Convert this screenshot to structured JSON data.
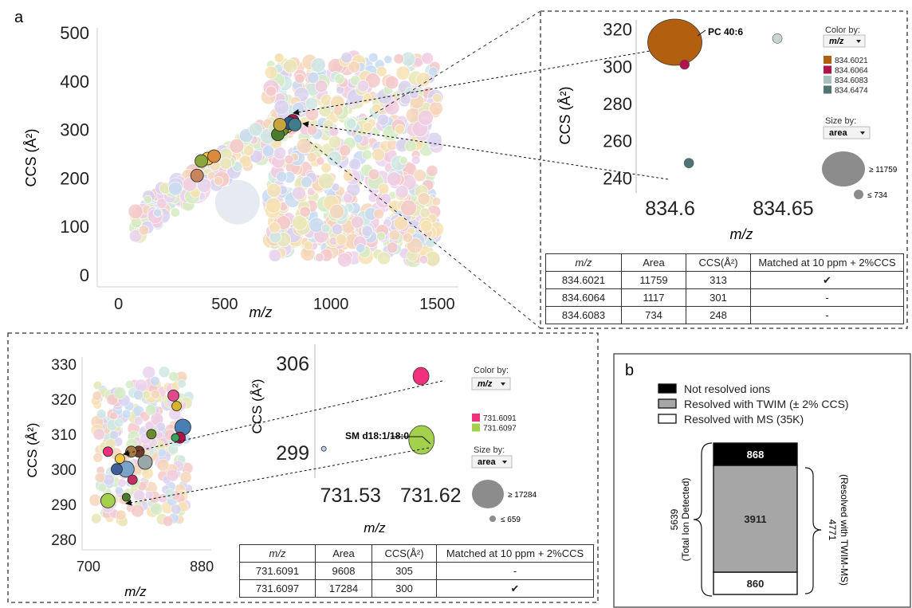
{
  "panel_labels": {
    "a": "a",
    "b": "b"
  },
  "colors": {
    "accent_orange": "#b35f10",
    "accent_red": "#b0144a",
    "accent_gray_light": "#a8c0bd",
    "accent_teal": "#4f7476",
    "accent_magenta": "#f0307c",
    "accent_green": "#a3d04d",
    "bar_black": "#000000",
    "bar_gray": "#a6a6a6",
    "bar_white": "#ffffff"
  },
  "chart_data": [
    {
      "id": "main_scatter",
      "type": "scatter",
      "title": "",
      "xlabel": "m/z",
      "ylabel": "CCS (Å²)",
      "xlim": [
        -100,
        1600
      ],
      "ylim": [
        -25,
        510
      ],
      "xticks": [
        0,
        500,
        1000,
        1500
      ],
      "yticks": [
        0,
        100,
        200,
        300,
        400,
        500
      ],
      "grid": false,
      "highlight_points": [
        {
          "x": 820,
          "y": 318,
          "color": "#b0144a"
        },
        {
          "x": 790,
          "y": 306,
          "color": "#e8a43a"
        },
        {
          "x": 770,
          "y": 300,
          "color": "#6e8a2e"
        },
        {
          "x": 750,
          "y": 290,
          "color": "#4c7a2e"
        },
        {
          "x": 805,
          "y": 313,
          "color": "#2e5a8a"
        },
        {
          "x": 830,
          "y": 310,
          "color": "#3f7d8a"
        },
        {
          "x": 760,
          "y": 310,
          "color": "#c7a43c"
        },
        {
          "x": 420,
          "y": 240,
          "color": "#f2c744"
        },
        {
          "x": 450,
          "y": 245,
          "color": "#d98a3a"
        },
        {
          "x": 390,
          "y": 235,
          "color": "#8aa63c"
        },
        {
          "x": 370,
          "y": 205,
          "color": "#c6855d"
        }
      ]
    },
    {
      "id": "zoom_a",
      "type": "scatter",
      "title": "",
      "xlabel": "m/z",
      "ylabel": "CCS (Å²)",
      "xlim": [
        834.585,
        834.665
      ],
      "ylim": [
        232,
        325
      ],
      "xticks": [
        834.6,
        834.65
      ],
      "yticks": [
        240,
        260,
        280,
        300,
        320
      ],
      "grid": false,
      "points": [
        {
          "x": 834.6021,
          "y": 313,
          "area": 11759,
          "color": "#b35f10"
        },
        {
          "x": 834.6064,
          "y": 301,
          "area": 1117,
          "color": "#b0144a"
        },
        {
          "x": 834.6083,
          "y": 248,
          "area": 734,
          "color": "#4f7476"
        },
        {
          "x": 834.6474,
          "y": 315,
          "area": 734,
          "color": "#c9d4d0"
        }
      ],
      "annotation": "PC 40:6",
      "color_by_label": "Color by:",
      "color_by_value": "m/z",
      "legend": [
        {
          "label": "834.6021",
          "color": "#b35f10"
        },
        {
          "label": "834.6064",
          "color": "#b0144a"
        },
        {
          "label": "834.6083",
          "color": "#a8c0bd"
        },
        {
          "label": "834.6474",
          "color": "#4f7476"
        }
      ],
      "size_by_label": "Size by:",
      "size_by_value": "area",
      "size_max_label": "≥ 11759",
      "size_min_label": "≤ 734"
    },
    {
      "id": "table_a",
      "type": "table",
      "columns": [
        "m/z",
        "Area",
        "CCS(Å²)",
        "Matched at 10 ppm + 2%CCS"
      ],
      "rows": [
        [
          "834.6021",
          "11759",
          "313",
          "✔"
        ],
        [
          "834.6064",
          "1117",
          "301",
          "-"
        ],
        [
          "834.6083",
          "734",
          "248",
          "-"
        ]
      ]
    },
    {
      "id": "zoom_b_left",
      "type": "scatter",
      "title": "",
      "xlabel": "m/z",
      "ylabel": "CCS (Å²)",
      "xlim": [
        690,
        895
      ],
      "ylim": [
        277,
        332
      ],
      "xticks": [
        700,
        880
      ],
      "yticks": [
        280,
        290,
        300,
        310,
        320,
        330
      ],
      "grid": false
    },
    {
      "id": "zoom_b_right",
      "type": "scatter",
      "title": "",
      "xlabel": "m/z",
      "ylabel": "CCS (Å²)",
      "xlim": [
        731.49,
        731.66
      ],
      "ylim": [
        297,
        307.5
      ],
      "xticks": [
        731.53,
        731.62
      ],
      "yticks": [
        299,
        306
      ],
      "grid": false,
      "points": [
        {
          "x": 731.6091,
          "y": 305,
          "area": 9608,
          "color": "#f0307c"
        },
        {
          "x": 731.6097,
          "y": 300,
          "area": 17284,
          "color": "#a3d04d"
        },
        {
          "x": 731.5,
          "y": 299.3,
          "area": 659,
          "color": "#bfd6ee"
        }
      ],
      "annotation": "SM d18:1/18:0",
      "color_by_label": "Color by:",
      "color_by_value": "m/z",
      "legend": [
        {
          "label": "731.6091",
          "color": "#f0307c"
        },
        {
          "label": "731.6097",
          "color": "#a3d04d"
        }
      ],
      "size_by_label": "Size by:",
      "size_by_value": "area",
      "size_max_label": "≥ 17284",
      "size_min_label": "≤ 659"
    },
    {
      "id": "table_b",
      "type": "table",
      "columns": [
        "m/z",
        "Area",
        "CCS(Å²)",
        "Matched at 10 ppm + 2%CCS"
      ],
      "rows": [
        [
          "731.6091",
          "9608",
          "305",
          "-"
        ],
        [
          "731.6097",
          "17284",
          "300",
          "✔"
        ]
      ]
    },
    {
      "id": "stacked_b",
      "type": "bar",
      "categories": [
        ""
      ],
      "series": [
        {
          "name": "Resolved with MS (35K)",
          "values": [
            860
          ],
          "color": "#ffffff"
        },
        {
          "name": "Resolved with TWIM (± 2% CCS)",
          "values": [
            3911
          ],
          "color": "#a6a6a6"
        },
        {
          "name": "Not resolved ions",
          "values": [
            868
          ],
          "color": "#000000"
        }
      ],
      "left_brace_value": "5639",
      "left_brace_label": "(Total Ion Detected)",
      "right_brace_value": "4771",
      "right_brace_label": "(Resolved with TWIM-MS)"
    }
  ]
}
